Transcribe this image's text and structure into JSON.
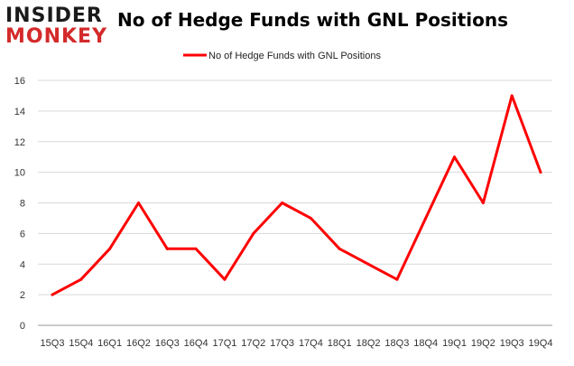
{
  "logo": {
    "line1": "INSIDER",
    "line2": "MONKEY"
  },
  "colors": {
    "series": "#ff0000",
    "logo_accent": "#d42a2a",
    "grid": "#d9d9d9"
  },
  "chart_data": {
    "type": "line",
    "title": "No of Hedge Funds with GNL Positions",
    "categories": [
      "15Q3",
      "15Q4",
      "16Q1",
      "16Q2",
      "16Q3",
      "16Q4",
      "17Q1",
      "17Q2",
      "17Q3",
      "17Q4",
      "18Q1",
      "18Q2",
      "18Q3",
      "18Q4",
      "19Q1",
      "19Q2",
      "19Q3",
      "19Q4"
    ],
    "series": [
      {
        "name": "No of Hedge Funds with GNL Positions",
        "values": [
          2,
          3,
          5,
          8,
          5,
          5,
          3,
          6,
          8,
          7,
          5,
          4,
          3,
          7,
          11,
          8,
          15,
          10
        ]
      }
    ],
    "ylim": [
      0,
      16
    ],
    "yticks": [
      0,
      2,
      4,
      6,
      8,
      10,
      12,
      14,
      16
    ],
    "grid": true,
    "legend": "top-center"
  }
}
